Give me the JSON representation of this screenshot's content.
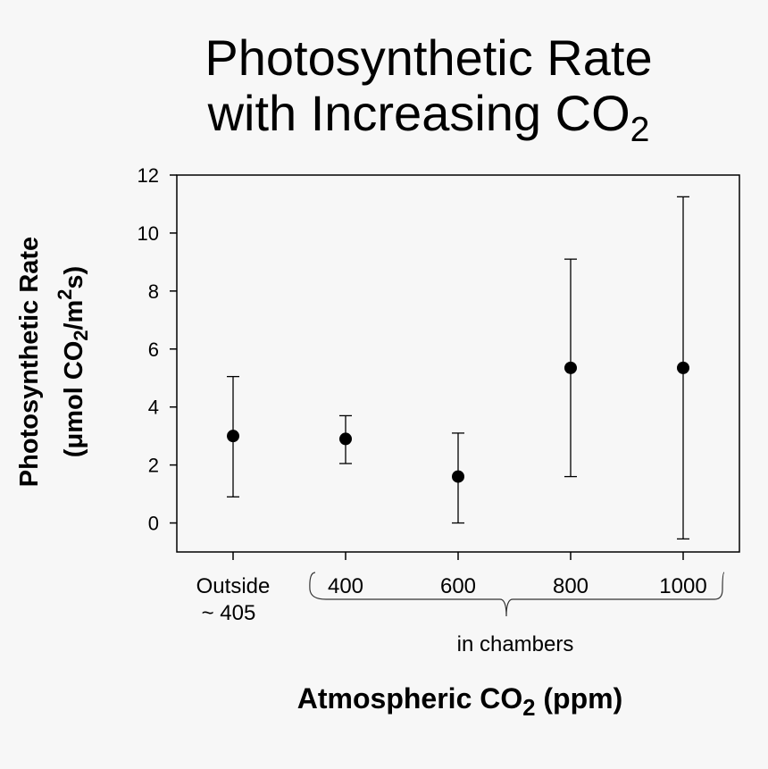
{
  "chart_data": {
    "type": "scatter",
    "title_line1": "Photosynthetic Rate",
    "title_line2": "with Increasing CO",
    "title_sub": "2",
    "ylabel_line1": "Photosynthetic Rate",
    "ylabel_line2_a": "(μmol CO",
    "ylabel_line2_sub": "2",
    "ylabel_line2_b": "/m",
    "ylabel_line2_sup": "2",
    "ylabel_line2_c": "s)",
    "xlabel_a": "Atmospheric CO",
    "xlabel_sub": "2",
    "xlabel_b": " (ppm)",
    "ylim": [
      -1,
      12
    ],
    "yticks": [
      0,
      2,
      4,
      6,
      8,
      10,
      12
    ],
    "categories": [
      "Outside",
      "400",
      "600",
      "800",
      "1000"
    ],
    "category_sublabels": [
      "~ 405",
      "",
      "",
      "",
      ""
    ],
    "group_annotation": "in chambers",
    "points": [
      {
        "label": "Outside ~ 405",
        "y": 3.0,
        "low": 0.9,
        "high": 5.05
      },
      {
        "label": "400",
        "y": 2.9,
        "low": 2.05,
        "high": 3.7
      },
      {
        "label": "600",
        "y": 1.6,
        "low": 0.0,
        "high": 3.1
      },
      {
        "label": "800",
        "y": 5.35,
        "low": 1.6,
        "high": 9.1
      },
      {
        "label": "1000",
        "y": 5.35,
        "low": -0.55,
        "high": 11.25
      }
    ],
    "grid": false,
    "marker_color": "#000000"
  }
}
